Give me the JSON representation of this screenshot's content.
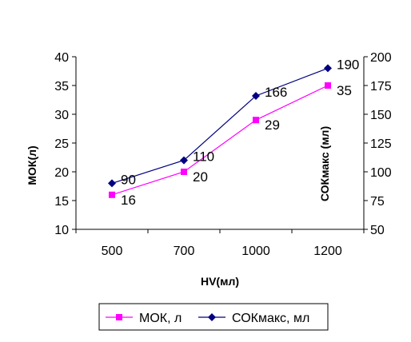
{
  "chart_data": {
    "type": "line",
    "categories": [
      "500",
      "700",
      "1000",
      "1200"
    ],
    "x": [
      500,
      700,
      1000,
      1200
    ],
    "xlabel": "HV(мл)",
    "ylabel_left": "МОК(л)",
    "ylabel_right": "СОКмакс (мл)",
    "ylim_left": [
      10,
      40
    ],
    "yticks_left": [
      10,
      15,
      20,
      25,
      30,
      35,
      40
    ],
    "ylim_right": [
      50,
      200
    ],
    "yticks_right": [
      50,
      75,
      100,
      125,
      150,
      175,
      200
    ],
    "grid": false,
    "legend_position": "bottom",
    "series": [
      {
        "name": "МОК, л",
        "axis": "left",
        "color": "#ff00ff",
        "marker": "square",
        "values": [
          16,
          20,
          29,
          35
        ],
        "labels": [
          "16",
          "20",
          "29",
          "35"
        ]
      },
      {
        "name": "СОКмакс, мл",
        "axis": "right",
        "color": "#000080",
        "marker": "diamond",
        "values": [
          90,
          110,
          166,
          190
        ],
        "labels": [
          "90",
          "110",
          "166",
          "190"
        ]
      }
    ]
  }
}
